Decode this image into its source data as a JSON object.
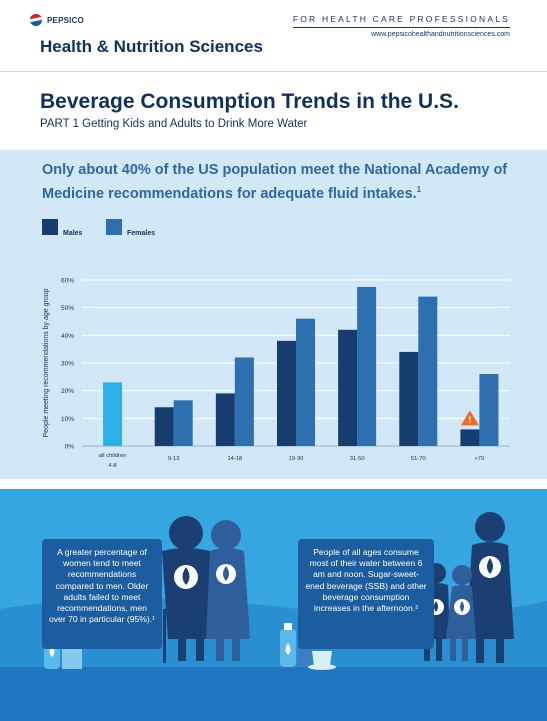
{
  "header": {
    "logo_text": "PEPSICO",
    "brand": "Health & Nutrition Sciences",
    "audience": "FOR HEALTH CARE PROFESSIONALS",
    "website": "www.pepsicohealthandnutritionsciences.com"
  },
  "page": {
    "title": "Beverage Consumption Trends in the U.S.",
    "subtitle": "PART 1 Getting Kids and Adults to Drink More Water",
    "headline": "Only about 40% of the US population meet the National Academy of Medicine recommendations for adequate fluid intakes.",
    "headline_ref": "1"
  },
  "chart_data": {
    "type": "bar",
    "title": "",
    "ylabel": "People meeting recommendations by age group",
    "xlabel": "",
    "ylim": [
      0,
      60
    ],
    "yticks": [
      "0%",
      "10%",
      "20%",
      "30%",
      "40%",
      "50%",
      "60%"
    ],
    "categories": [
      "all children 4-8",
      "9-13",
      "14-18",
      "19-30",
      "31-50",
      "51-70",
      ">70"
    ],
    "legend_position": "top-left",
    "grid": true,
    "series": [
      {
        "name": "Males",
        "color": "#173d6e",
        "values": [
          null,
          14,
          19,
          38,
          42,
          34,
          6
        ]
      },
      {
        "name": "Females",
        "color": "#2e6fb0",
        "values": [
          null,
          16.5,
          32,
          46,
          57.5,
          54,
          26
        ]
      }
    ],
    "combined": {
      "category": "all children 4-8",
      "value": 23,
      "color": "#2cb0e6"
    },
    "annotations": [
      {
        "category": ">70",
        "series": "Males",
        "symbol": "warning-icon"
      }
    ]
  },
  "notes": {
    "left": "A greater percentage of women tend to meet recommendations compared to men. Older adults failed to meet recommendations, men over 70 in particular (95%).¹",
    "right": "People of all ages consume most of their water between 6 am and noon. Sugar-sweet-ened beverage (SSB) and other beverage consumption increases in the afternoon.²"
  },
  "colors": {
    "navy": "#12305e",
    "accent_blue": "#2f65a9",
    "chart_bg": "#d2e8f6",
    "bottom_bg": "#35a6e0",
    "silhouette": "#1b3f73",
    "warning": "#f26b22"
  }
}
